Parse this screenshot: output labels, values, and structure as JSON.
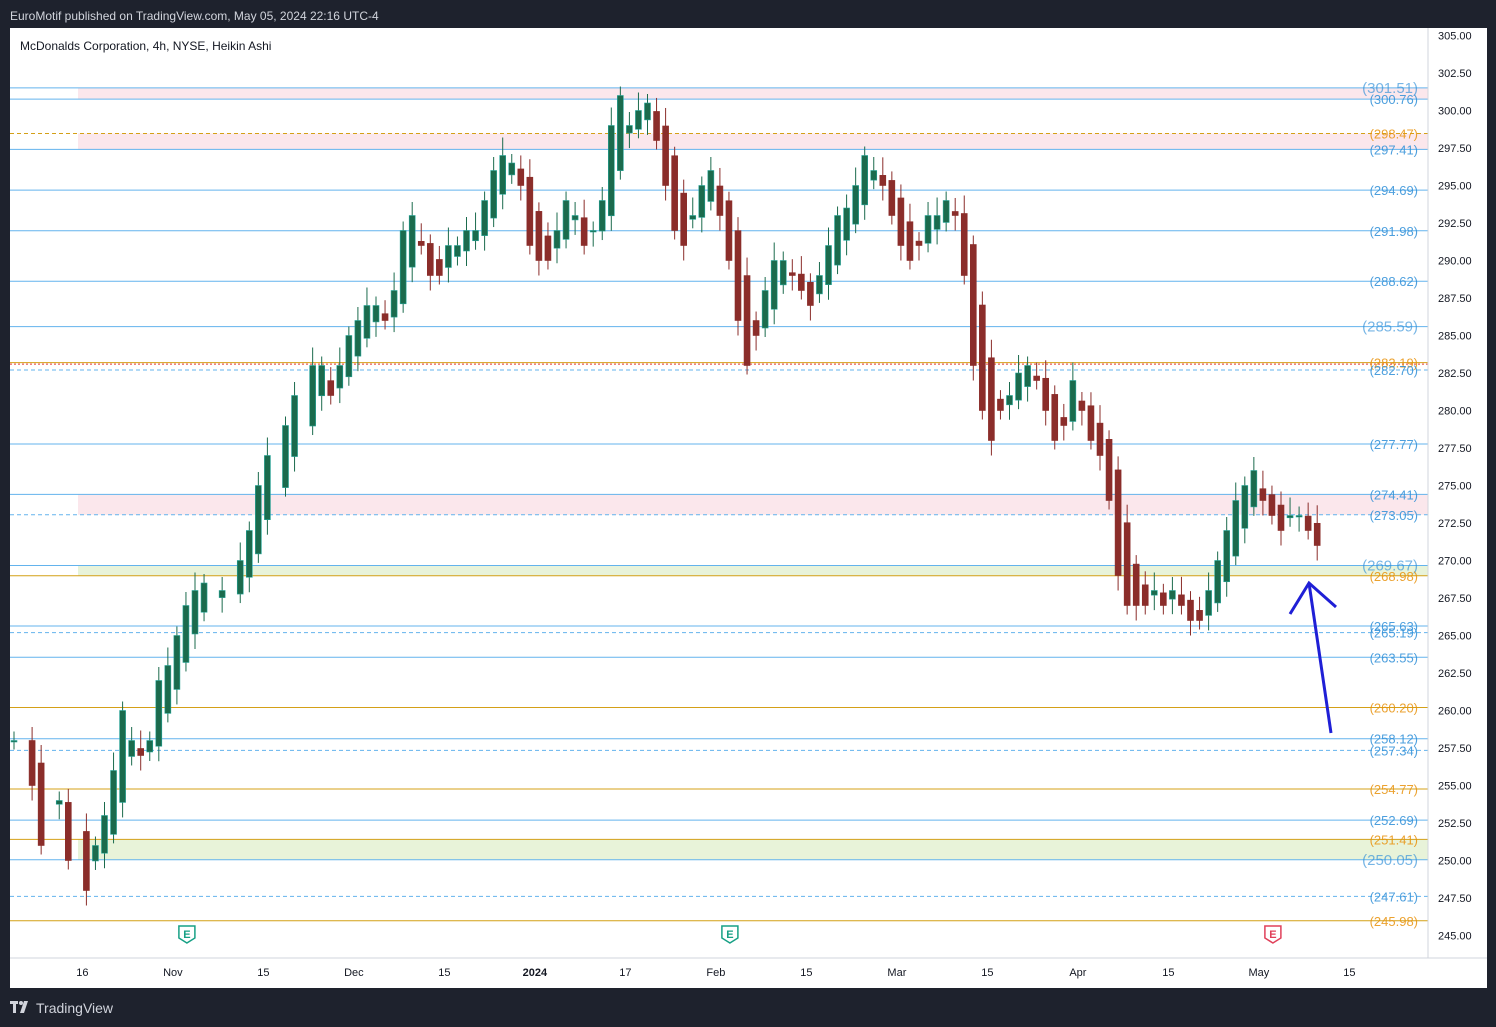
{
  "header": {
    "publisher": "EuroMotif published on TradingView.com, May 05, 2024 22:16 UTC-4"
  },
  "footer": {
    "brand": "TradingView"
  },
  "colors": {
    "up": "#26a69a",
    "up_body": "#1b6b4d",
    "down": "#8b2d2a",
    "blue_line": "#63b3ed",
    "orange_line": "#d4a017",
    "red_line": "#e53935",
    "arrow": "#1f1fd6",
    "zone_green": "#e8f3d9",
    "zone_pink": "#fbe7ec",
    "earnings_green": "#17a085",
    "earnings_red": "#e0405a"
  },
  "chart_data": {
    "type": "candlestick",
    "title": "McDonalds Corporation, 4h, NYSE, Heikin Ashi",
    "xlabel": "",
    "ylabel": "",
    "ylim": [
      243.5,
      305.5
    ],
    "y_ticks": [
      "305.00",
      "302.50",
      "300.00",
      "297.50",
      "295.00",
      "292.50",
      "290.00",
      "287.50",
      "285.00",
      "282.50",
      "280.00",
      "277.50",
      "275.00",
      "272.50",
      "270.00",
      "267.50",
      "265.00",
      "262.50",
      "260.00",
      "257.50",
      "255.00",
      "252.50",
      "250.00",
      "247.50",
      "245.00"
    ],
    "x_ticks": [
      "16",
      "Nov",
      "15",
      "Dec",
      "15",
      "2024",
      "17",
      "Feb",
      "15",
      "Mar",
      "15",
      "Apr",
      "15",
      "May",
      "15"
    ],
    "x_tick_bars": [
      8,
      18,
      28,
      38,
      48,
      58,
      68,
      78,
      88,
      98,
      108,
      118,
      128,
      138,
      148
    ],
    "levels": [
      {
        "label": "(301.51)",
        "value": 301.51,
        "color": "blue",
        "style": "solid"
      },
      {
        "label": "(300.76)",
        "value": 300.76,
        "color": "blue",
        "style": "solid"
      },
      {
        "label": "(298.47)",
        "value": 298.47,
        "color": "orange",
        "style": "dashed"
      },
      {
        "label": "(297.41)",
        "value": 297.41,
        "color": "blue",
        "style": "solid"
      },
      {
        "label": "(294.69)",
        "value": 294.69,
        "color": "blue",
        "style": "solid"
      },
      {
        "label": "(291.98)",
        "value": 291.98,
        "color": "blue",
        "style": "solid"
      },
      {
        "label": "(288.62)",
        "value": 288.62,
        "color": "blue",
        "style": "solid"
      },
      {
        "label": "(285.59)",
        "value": 285.59,
        "color": "blue",
        "style": "solid"
      },
      {
        "label": "(283.19)",
        "value": 283.19,
        "color": "orange",
        "style": "solid"
      },
      {
        "label": "(282.70)",
        "value": 282.7,
        "color": "blue",
        "style": "dashed"
      },
      {
        "label": "(277.77)",
        "value": 277.77,
        "color": "blue",
        "style": "solid"
      },
      {
        "label": "(274.41)",
        "value": 274.41,
        "color": "blue",
        "style": "solid"
      },
      {
        "label": "(273.05)",
        "value": 273.05,
        "color": "blue",
        "style": "dashed"
      },
      {
        "label": "(269.67)",
        "value": 269.67,
        "color": "blue",
        "style": "solid"
      },
      {
        "label": "(268.98)",
        "value": 268.98,
        "color": "orange",
        "style": "solid"
      },
      {
        "label": "(265.63)",
        "value": 265.63,
        "color": "blue",
        "style": "solid"
      },
      {
        "label": "(265.19)",
        "value": 265.19,
        "color": "blue",
        "style": "dashed"
      },
      {
        "label": "(263.55)",
        "value": 263.55,
        "color": "blue",
        "style": "solid"
      },
      {
        "label": "(260.20)",
        "value": 260.2,
        "color": "orange",
        "style": "solid"
      },
      {
        "label": "(258.12)",
        "value": 258.12,
        "color": "blue",
        "style": "solid"
      },
      {
        "label": "(257.34)",
        "value": 257.34,
        "color": "blue",
        "style": "dashed"
      },
      {
        "label": "(254.77)",
        "value": 254.77,
        "color": "orange",
        "style": "solid"
      },
      {
        "label": "(252.69)",
        "value": 252.69,
        "color": "blue",
        "style": "solid"
      },
      {
        "label": "(251.41)",
        "value": 251.41,
        "color": "orange",
        "style": "solid"
      },
      {
        "label": "(250.05)",
        "value": 250.05,
        "color": "blue",
        "style": "solid"
      },
      {
        "label": "(247.61)",
        "value": 247.61,
        "color": "blue",
        "style": "dashed"
      },
      {
        "label": "(245.98)",
        "value": 245.98,
        "color": "orange",
        "style": "solid"
      }
    ],
    "zones": [
      {
        "from": 300.76,
        "to": 301.51,
        "color": "pink"
      },
      {
        "from": 297.41,
        "to": 298.47,
        "color": "pink"
      },
      {
        "from": 273.05,
        "to": 274.41,
        "color": "pink"
      },
      {
        "from": 268.98,
        "to": 269.67,
        "color": "green"
      },
      {
        "from": 250.05,
        "to": 251.41,
        "color": "green"
      }
    ],
    "earnings_markers": [
      {
        "label": "E",
        "bar": 18,
        "color": "green"
      },
      {
        "label": "E",
        "bar": 78,
        "color": "green"
      },
      {
        "label": "E",
        "bar": 138,
        "color": "red"
      }
    ],
    "annotation": {
      "type": "arrow",
      "from_bar": 143,
      "from_value": 258.5,
      "to_bar": 139,
      "to_value": 268.5
    },
    "heikin_ashi_closes_by_bar": [
      [
        0,
        258
      ],
      [
        2,
        255
      ],
      [
        3,
        251
      ],
      [
        5,
        254
      ],
      [
        6,
        250
      ],
      [
        8,
        248
      ],
      [
        9,
        251
      ],
      [
        10,
        253
      ],
      [
        11,
        256
      ],
      [
        12,
        260
      ],
      [
        13,
        258
      ],
      [
        14,
        257
      ],
      [
        15,
        258
      ],
      [
        16,
        262
      ],
      [
        17,
        263
      ],
      [
        18,
        265
      ],
      [
        19,
        267
      ],
      [
        20,
        268
      ],
      [
        21,
        268.5
      ],
      [
        23,
        268
      ],
      [
        25,
        270
      ],
      [
        26,
        272
      ],
      [
        27,
        275
      ],
      [
        28,
        277
      ],
      [
        30,
        279
      ],
      [
        31,
        281
      ],
      [
        33,
        283
      ],
      [
        34,
        283
      ],
      [
        35,
        281
      ],
      [
        36,
        283
      ],
      [
        37,
        285
      ],
      [
        38,
        286
      ],
      [
        39,
        287
      ],
      [
        40,
        287
      ],
      [
        41,
        286
      ],
      [
        42,
        288
      ],
      [
        43,
        292
      ],
      [
        44,
        293
      ],
      [
        45,
        291
      ],
      [
        46,
        289
      ],
      [
        47,
        289
      ],
      [
        48,
        291
      ],
      [
        49,
        291
      ],
      [
        50,
        292
      ],
      [
        51,
        292
      ],
      [
        52,
        294
      ],
      [
        53,
        296
      ],
      [
        54,
        297
      ],
      [
        55,
        296.5
      ],
      [
        56,
        295
      ],
      [
        57,
        291
      ],
      [
        58,
        290
      ],
      [
        59,
        290
      ],
      [
        60,
        292
      ],
      [
        61,
        294
      ],
      [
        62,
        293
      ],
      [
        63,
        291
      ],
      [
        64,
        292
      ],
      [
        65,
        294
      ],
      [
        66,
        299
      ],
      [
        67,
        301
      ],
      [
        68,
        299
      ],
      [
        69,
        300
      ],
      [
        70,
        300.5
      ],
      [
        71,
        298
      ],
      [
        72,
        295
      ],
      [
        73,
        292
      ],
      [
        74,
        291
      ],
      [
        75,
        293
      ],
      [
        76,
        295
      ],
      [
        77,
        296
      ],
      [
        78,
        293
      ],
      [
        79,
        290
      ],
      [
        80,
        286
      ],
      [
        81,
        283
      ],
      [
        82,
        285
      ],
      [
        83,
        288
      ],
      [
        84,
        290
      ],
      [
        85,
        290
      ],
      [
        86,
        289
      ],
      [
        87,
        288
      ],
      [
        88,
        287
      ],
      [
        89,
        289
      ],
      [
        90,
        291
      ],
      [
        91,
        293
      ],
      [
        92,
        293.5
      ],
      [
        93,
        295
      ],
      [
        94,
        297
      ],
      [
        95,
        296
      ],
      [
        96,
        295
      ],
      [
        97,
        293
      ],
      [
        98,
        291
      ],
      [
        99,
        290
      ],
      [
        100,
        291
      ],
      [
        101,
        293
      ],
      [
        102,
        293
      ],
      [
        103,
        294
      ],
      [
        104,
        293
      ],
      [
        105,
        289
      ],
      [
        106,
        283
      ],
      [
        107,
        280
      ],
      [
        108,
        278
      ],
      [
        109,
        280
      ],
      [
        110,
        281
      ],
      [
        111,
        282.5
      ],
      [
        112,
        283
      ],
      [
        113,
        282
      ],
      [
        114,
        280
      ],
      [
        115,
        278
      ],
      [
        116,
        279
      ],
      [
        117,
        282
      ],
      [
        118,
        280
      ],
      [
        119,
        278
      ],
      [
        120,
        277
      ],
      [
        121,
        274
      ],
      [
        122,
        269
      ],
      [
        123,
        267
      ],
      [
        124,
        267
      ],
      [
        125,
        267
      ],
      [
        126,
        268
      ],
      [
        127,
        267
      ],
      [
        128,
        268
      ],
      [
        129,
        267
      ],
      [
        130,
        266
      ],
      [
        131,
        266
      ],
      [
        132,
        268
      ],
      [
        133,
        270
      ],
      [
        134,
        272
      ],
      [
        135,
        274
      ],
      [
        136,
        275
      ],
      [
        137,
        276
      ],
      [
        138,
        274
      ],
      [
        139,
        273
      ],
      [
        140,
        272
      ],
      [
        141,
        273
      ],
      [
        142,
        273
      ],
      [
        143,
        272
      ],
      [
        144,
        271
      ]
    ]
  }
}
